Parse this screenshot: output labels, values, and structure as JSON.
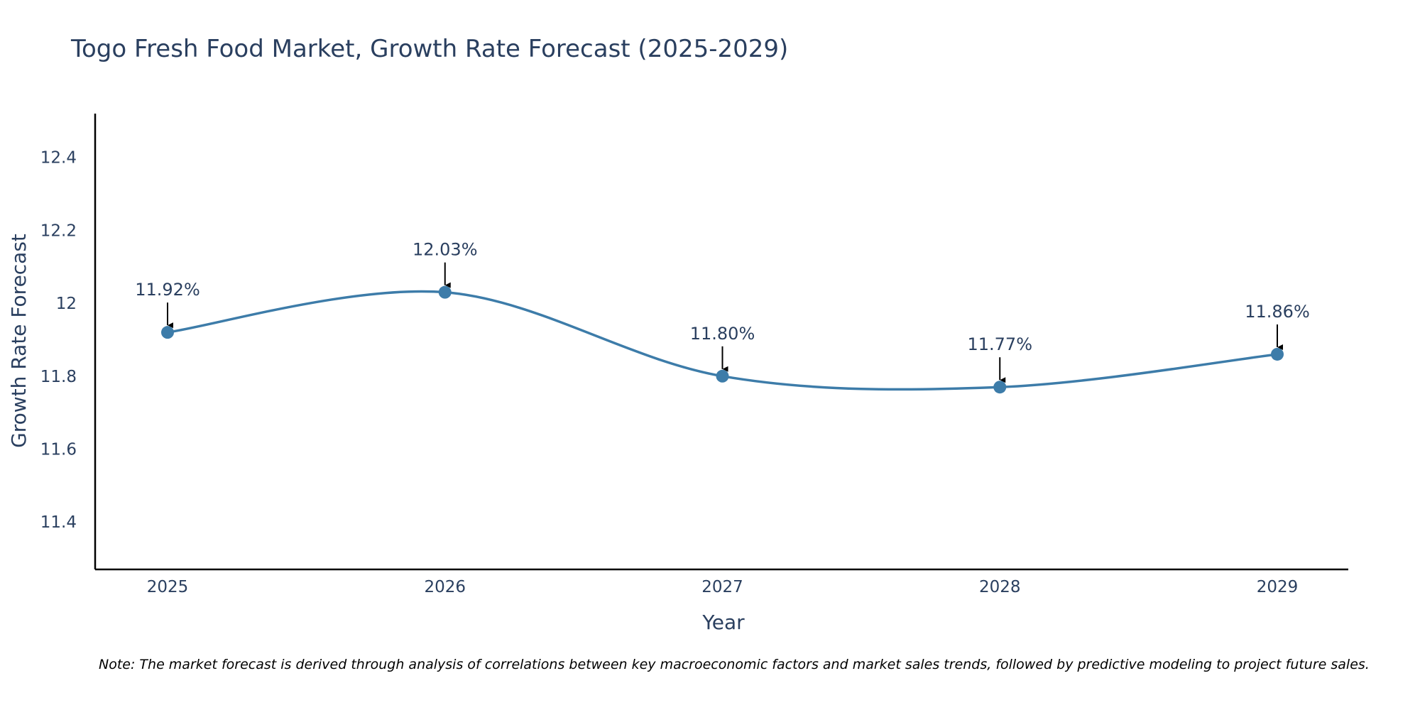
{
  "chart_data": {
    "type": "line",
    "title": "Togo Fresh Food Market, Growth Rate Forecast (2025-2029)",
    "xlabel": "Year",
    "ylabel": "Growth Rate Forecast",
    "categories": [
      "2025",
      "2026",
      "2027",
      "2028",
      "2029"
    ],
    "values": [
      11.92,
      12.03,
      11.8,
      11.77,
      11.86
    ],
    "data_labels": [
      "11.92%",
      "12.03%",
      "11.80%",
      "11.77%",
      "11.86%"
    ],
    "yticks": [
      11.4,
      11.6,
      11.8,
      12,
      12.2,
      12.4
    ],
    "ytick_labels": [
      "11.4",
      "11.6",
      "11.8",
      "12",
      "12.2",
      "12.4"
    ],
    "ylim": [
      11.27,
      12.52
    ],
    "series_color": "#3d7ca9",
    "line_shape": "spline",
    "grid": false,
    "note": "Note: The market forecast is derived through analysis of correlations between key macroeconomic factors and market sales trends, followed by predictive modeling to project future sales."
  }
}
